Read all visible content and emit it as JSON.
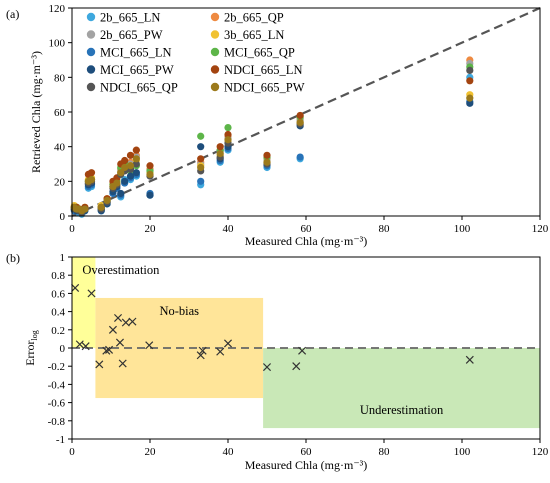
{
  "chart_data": [
    {
      "panel_label": "(a)",
      "type": "scatter",
      "xlabel": "Measured Chla (mg·m⁻³)",
      "ylabel": "Retrieved Chla (mg·m⁻³)",
      "xlim": [
        0,
        120
      ],
      "ylim": [
        0,
        120
      ],
      "xticks": [
        0,
        20,
        40,
        60,
        80,
        100,
        120
      ],
      "yticks": [
        0,
        20,
        40,
        60,
        80,
        100,
        120
      ],
      "one_to_one_line": true,
      "legend_placement": "top-left",
      "x": [
        0.6,
        1.2,
        1.8,
        2.5,
        3.3,
        4.2,
        5.0,
        7.5,
        9.0,
        10.5,
        11.5,
        12.5,
        13.5,
        15.0,
        16.5,
        20.0,
        33.0,
        38.0,
        40.0,
        50.0,
        58.5,
        102.0
      ],
      "series": [
        {
          "name": "2b_665_LN",
          "color": "#3ea8de",
          "y": [
            4.0,
            3.0,
            2.0,
            1.0,
            3.0,
            16.0,
            17.0,
            3.0,
            7.0,
            17.0,
            18.0,
            11.0,
            21.0,
            21.0,
            23.0,
            12.0,
            18.0,
            31.0,
            38.0,
            28.0,
            33.0,
            80.0
          ]
        },
        {
          "name": "2b_665_QP",
          "color": "#ee8a41",
          "y": [
            5.0,
            4.0,
            4.0,
            3.0,
            4.0,
            20.0,
            21.0,
            5.0,
            9.0,
            18.0,
            20.0,
            27.0,
            30.0,
            31.0,
            35.0,
            27.0,
            31.0,
            38.0,
            46.0,
            33.0,
            56.0,
            90.0
          ]
        },
        {
          "name": "2b_665_PW",
          "color": "#a3a3a3",
          "y": [
            5.0,
            4.0,
            3.0,
            2.0,
            4.0,
            19.0,
            20.0,
            4.0,
            8.0,
            17.0,
            19.0,
            26.0,
            29.0,
            30.0,
            34.0,
            26.0,
            30.0,
            37.0,
            45.0,
            32.0,
            55.0,
            88.0
          ]
        },
        {
          "name": "3b_665_LN",
          "color": "#f1c232",
          "y": [
            6.0,
            5.0,
            4.0,
            3.0,
            5.0,
            21.0,
            22.0,
            6.0,
            10.0,
            19.0,
            21.0,
            25.0,
            27.0,
            29.0,
            32.0,
            25.0,
            29.0,
            35.0,
            43.0,
            31.0,
            54.0,
            70.0
          ]
        },
        {
          "name": "MCI_665_LN",
          "color": "#2873b8",
          "y": [
            3.0,
            4.0,
            3.0,
            2.0,
            4.0,
            17.0,
            18.0,
            4.0,
            8.0,
            13.0,
            16.0,
            12.0,
            19.0,
            22.0,
            24.0,
            13.0,
            20.0,
            32.0,
            39.0,
            29.0,
            34.0,
            66.0
          ]
        },
        {
          "name": "MCI_665_QP",
          "color": "#5db549",
          "y": [
            5.0,
            5.0,
            4.0,
            3.0,
            4.0,
            20.0,
            21.0,
            5.0,
            9.0,
            18.0,
            20.0,
            28.0,
            31.0,
            26.0,
            29.0,
            26.0,
            46.0,
            38.0,
            51.0,
            34.0,
            57.0,
            86.0
          ]
        },
        {
          "name": "MCI_665_PW",
          "color": "#1e4e7c",
          "y": [
            4.0,
            3.0,
            3.0,
            2.0,
            3.0,
            18.0,
            19.0,
            3.0,
            7.0,
            14.0,
            17.0,
            13.0,
            20.0,
            23.0,
            25.0,
            12.0,
            40.0,
            33.0,
            40.0,
            30.0,
            52.0,
            65.0
          ]
        },
        {
          "name": "NDCI_665_LN",
          "color": "#a34410",
          "y": [
            5.0,
            5.0,
            4.0,
            3.0,
            5.0,
            24.0,
            25.0,
            5.0,
            10.0,
            20.0,
            22.0,
            30.0,
            32.0,
            35.0,
            38.0,
            29.0,
            33.0,
            40.0,
            47.0,
            35.0,
            58.0,
            78.0
          ]
        },
        {
          "name": "NDCI_665_QP",
          "color": "#555555",
          "y": [
            4.0,
            4.0,
            3.0,
            2.0,
            4.0,
            19.0,
            20.0,
            4.0,
            8.0,
            16.0,
            18.0,
            24.0,
            26.0,
            27.0,
            30.0,
            23.0,
            26.0,
            34.0,
            42.0,
            30.0,
            53.0,
            84.0
          ]
        },
        {
          "name": "NDCI_665_PW",
          "color": "#9c7a1c",
          "y": [
            5.0,
            4.0,
            4.0,
            3.0,
            4.0,
            20.0,
            21.0,
            5.0,
            9.0,
            17.0,
            19.0,
            25.0,
            28.0,
            29.0,
            33.0,
            24.0,
            28.0,
            36.0,
            44.0,
            31.0,
            54.0,
            68.0
          ]
        }
      ]
    },
    {
      "panel_label": "(b)",
      "type": "scatter",
      "marker": "x",
      "xlabel": "Measured Chla (mg·m⁻³)",
      "ylabel": "Error",
      "ylabel_subscript": "log",
      "xlim": [
        0,
        120
      ],
      "ylim": [
        -1,
        1
      ],
      "xticks": [
        0,
        20,
        40,
        60,
        80,
        100,
        120
      ],
      "yticks": [
        -1,
        -0.8,
        -0.6,
        -0.4,
        -0.2,
        0,
        0.2,
        0.4,
        0.6,
        0.8,
        1
      ],
      "zero_line": true,
      "regions": [
        {
          "label": "Overestimation",
          "color": "#ffff99",
          "x": [
            0,
            6
          ],
          "y": [
            0,
            1
          ]
        },
        {
          "label": "No-bias",
          "color": "#ffe599",
          "x": [
            6,
            49
          ],
          "y": [
            -0.55,
            0.55
          ]
        },
        {
          "label": "Underestimation",
          "color": "#c9e8b7",
          "x": [
            49,
            120
          ],
          "y": [
            -0.88,
            0
          ]
        }
      ],
      "points": [
        {
          "x": 0.8,
          "y": 0.66
        },
        {
          "x": 2.0,
          "y": 0.04
        },
        {
          "x": 3.5,
          "y": 0.02
        },
        {
          "x": 5.0,
          "y": 0.6
        },
        {
          "x": 7.0,
          "y": -0.18
        },
        {
          "x": 8.8,
          "y": -0.03
        },
        {
          "x": 9.5,
          "y": -0.02
        },
        {
          "x": 10.5,
          "y": 0.2
        },
        {
          "x": 11.8,
          "y": 0.33
        },
        {
          "x": 12.3,
          "y": 0.06
        },
        {
          "x": 13.0,
          "y": -0.17
        },
        {
          "x": 13.8,
          "y": 0.28
        },
        {
          "x": 15.5,
          "y": 0.29
        },
        {
          "x": 19.8,
          "y": 0.03
        },
        {
          "x": 33.0,
          "y": -0.08
        },
        {
          "x": 33.5,
          "y": -0.03
        },
        {
          "x": 38.0,
          "y": -0.04
        },
        {
          "x": 40.0,
          "y": 0.05
        },
        {
          "x": 50.0,
          "y": -0.21
        },
        {
          "x": 57.5,
          "y": -0.2
        },
        {
          "x": 59.0,
          "y": -0.03
        },
        {
          "x": 102.0,
          "y": -0.13
        }
      ]
    }
  ]
}
